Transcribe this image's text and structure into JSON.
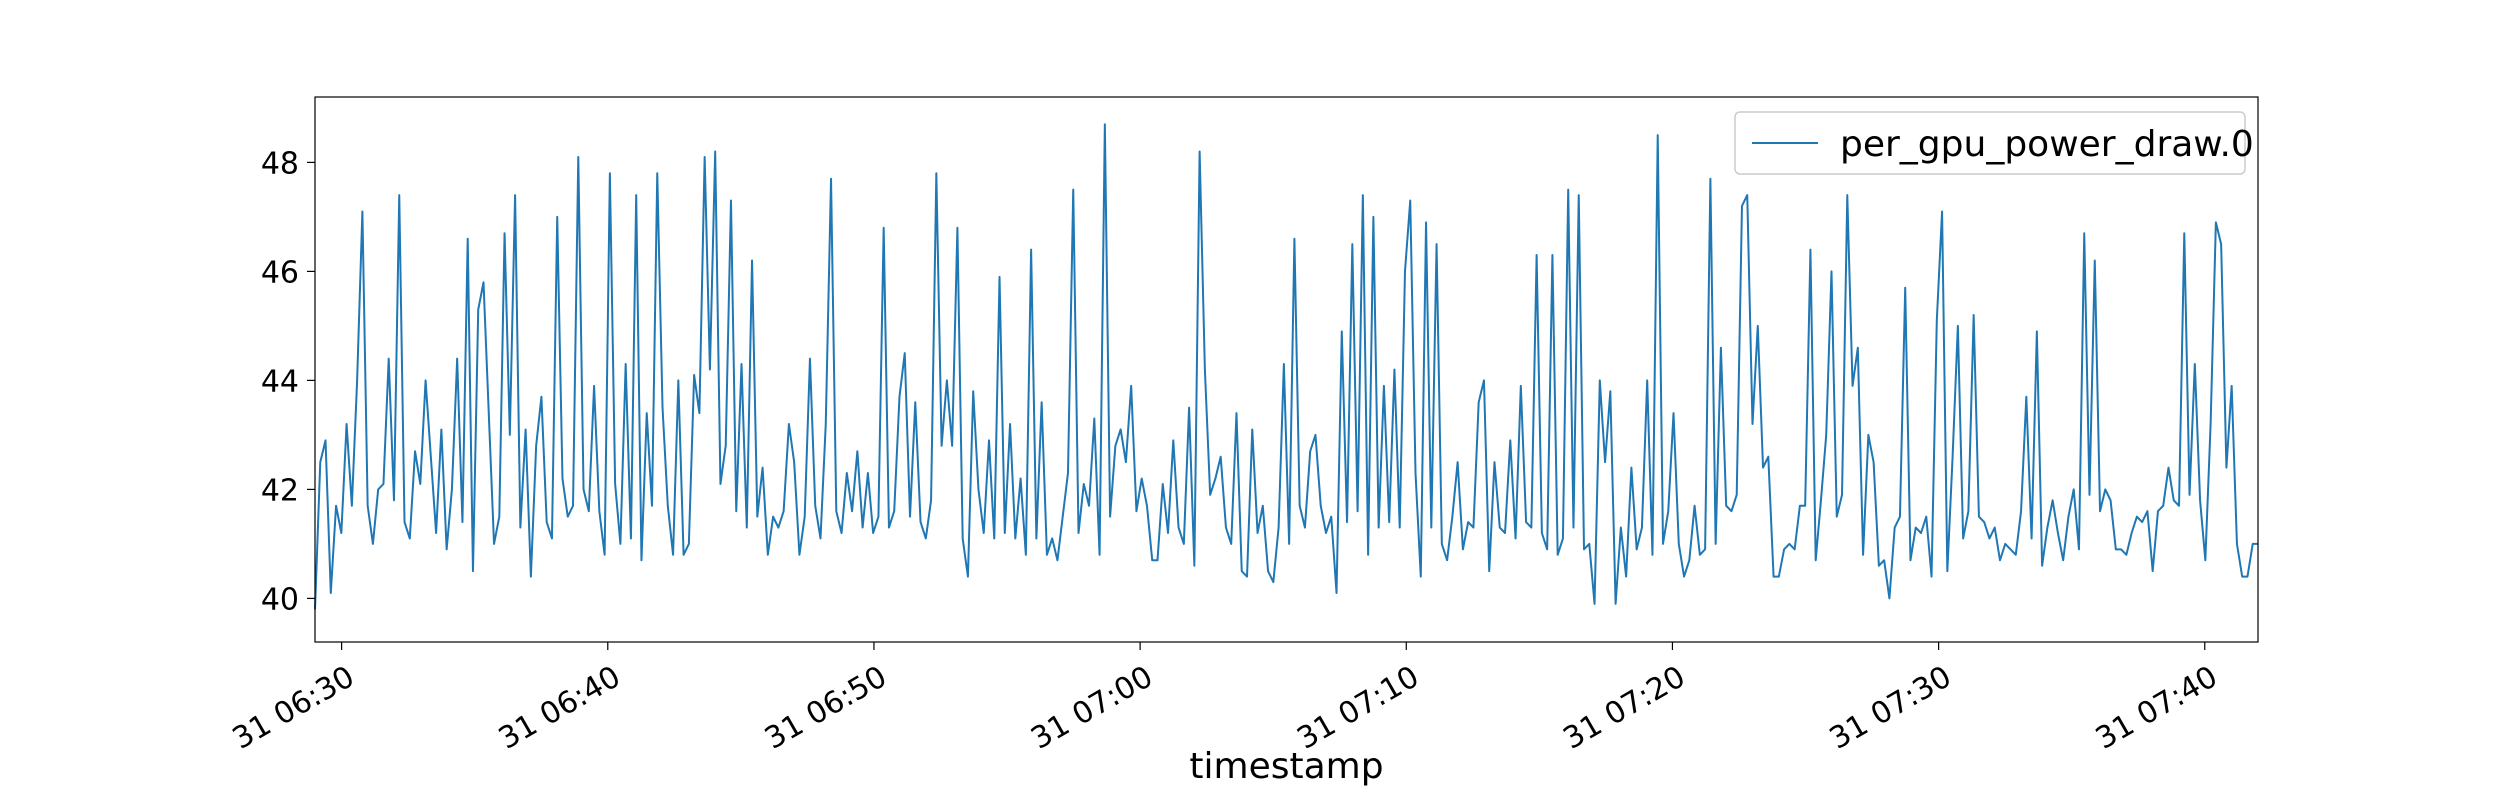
{
  "chart_data": {
    "type": "line",
    "title": "",
    "xlabel": "timestamp",
    "ylabel": "",
    "x_start": "31 06:29",
    "x_end": "31 07:42",
    "x_ticks": [
      "31 06:30",
      "31 06:40",
      "31 06:50",
      "31 07:00",
      "31 07:10",
      "31 07:20",
      "31 07:30",
      "31 07:40"
    ],
    "y_ticks": [
      40,
      42,
      44,
      46,
      48
    ],
    "ylim": [
      39.2,
      49.2
    ],
    "grid": false,
    "legend_position": "top-right",
    "series": [
      {
        "name": "per_gpu_power_draw.0",
        "color": "#1f77b4",
        "values": [
          39.8,
          42.5,
          42.9,
          40.1,
          41.7,
          41.2,
          43.2,
          41.7,
          44.0,
          47.1,
          41.7,
          41.0,
          42.0,
          42.1,
          44.4,
          41.8,
          47.4,
          41.4,
          41.1,
          42.7,
          42.1,
          44.0,
          42.6,
          41.2,
          43.1,
          40.9,
          42.0,
          44.4,
          41.4,
          46.6,
          40.5,
          45.3,
          45.8,
          43.4,
          41.0,
          41.5,
          46.7,
          43.0,
          47.4,
          41.3,
          43.1,
          40.4,
          42.8,
          43.7,
          41.4,
          41.1,
          47.0,
          42.2,
          41.5,
          41.7,
          48.1,
          42.0,
          41.6,
          43.9,
          41.6,
          40.8,
          47.8,
          42.1,
          41.0,
          44.3,
          41.1,
          47.4,
          40.7,
          43.4,
          41.7,
          47.8,
          43.5,
          41.7,
          40.8,
          44.0,
          40.8,
          41.0,
          44.1,
          43.4,
          48.1,
          44.2,
          48.2,
          42.1,
          42.8,
          47.3,
          41.6,
          44.3,
          41.3,
          46.2,
          41.5,
          42.4,
          40.8,
          41.5,
          41.3,
          41.6,
          43.2,
          42.5,
          40.8,
          41.5,
          44.4,
          41.7,
          41.1,
          43.2,
          47.7,
          41.6,
          41.2,
          42.3,
          41.6,
          42.7,
          41.3,
          42.3,
          41.2,
          41.5,
          46.8,
          41.3,
          41.6,
          43.7,
          44.5,
          41.5,
          43.6,
          41.4,
          41.1,
          41.8,
          47.8,
          42.8,
          44.0,
          42.8,
          46.8,
          41.1,
          40.4,
          43.8,
          42.0,
          41.2,
          42.9,
          41.1,
          45.9,
          41.2,
          43.2,
          41.1,
          42.2,
          40.8,
          46.4,
          41.1,
          43.6,
          40.8,
          41.1,
          40.7,
          41.5,
          42.3,
          47.5,
          41.2,
          42.1,
          41.7,
          43.3,
          40.8,
          48.7,
          41.5,
          42.8,
          43.1,
          42.5,
          43.9,
          41.6,
          42.2,
          41.7,
          40.7,
          40.7,
          42.1,
          41.2,
          42.9,
          41.3,
          41.0,
          43.5,
          40.6,
          48.2,
          44.2,
          41.9,
          42.2,
          42.6,
          41.3,
          41.0,
          43.4,
          40.5,
          40.4,
          43.1,
          41.2,
          41.7,
          40.5,
          40.3,
          41.3,
          44.3,
          41.0,
          46.6,
          41.7,
          41.3,
          42.7,
          43.0,
          41.7,
          41.2,
          41.5,
          40.1,
          44.9,
          41.4,
          46.5,
          41.6,
          47.4,
          40.8,
          47.0,
          41.3,
          43.9,
          41.4,
          44.2,
          41.3,
          46.0,
          47.3,
          42.3,
          40.4,
          46.9,
          41.3,
          46.5,
          41.0,
          40.7,
          41.5,
          42.5,
          40.9,
          41.4,
          41.3,
          43.6,
          44.0,
          40.5,
          42.5,
          41.3,
          41.2,
          42.9,
          41.1,
          43.9,
          41.4,
          41.3,
          46.3,
          41.2,
          40.9,
          46.3,
          40.8,
          41.1,
          47.5,
          41.3,
          47.4,
          40.9,
          41.0,
          39.9,
          44.0,
          42.5,
          43.8,
          39.9,
          41.3,
          40.4,
          42.4,
          40.9,
          41.3,
          44.0,
          40.8,
          48.5,
          41.0,
          41.6,
          43.4,
          41.0,
          40.4,
          40.7,
          41.7,
          40.8,
          40.9,
          47.7,
          41.0,
          44.6,
          41.7,
          41.6,
          41.9,
          47.2,
          47.4,
          43.2,
          45.0,
          42.4,
          42.6,
          40.4,
          40.4,
          40.9,
          41.0,
          40.9,
          41.7,
          41.7,
          46.4,
          40.7,
          41.8,
          43.0,
          46.0,
          41.5,
          41.9,
          47.4,
          43.9,
          44.6,
          40.8,
          43.0,
          42.5,
          40.6,
          40.7,
          40.0,
          41.3,
          41.5,
          45.7,
          40.7,
          41.3,
          41.2,
          41.5,
          40.4,
          45.1,
          47.1,
          40.5,
          42.6,
          45.0,
          41.1,
          41.6,
          45.2,
          41.5,
          41.4,
          41.1,
          41.3,
          40.7,
          41.0,
          40.9,
          40.8,
          41.6,
          43.7,
          41.1,
          44.9,
          40.6,
          41.3,
          41.8,
          41.2,
          40.7,
          41.5,
          42.0,
          40.9,
          46.7,
          41.9,
          46.2,
          41.6,
          42.0,
          41.8,
          40.9,
          40.9,
          40.8,
          41.2,
          41.5,
          41.4,
          41.6,
          40.5,
          41.6,
          41.7,
          42.4,
          41.8,
          41.7,
          46.7,
          41.9,
          44.3,
          41.8,
          40.7,
          43.2,
          46.9,
          46.5,
          42.4,
          43.9,
          41.0,
          40.4,
          40.4,
          41.0,
          41.0
        ]
      }
    ]
  }
}
